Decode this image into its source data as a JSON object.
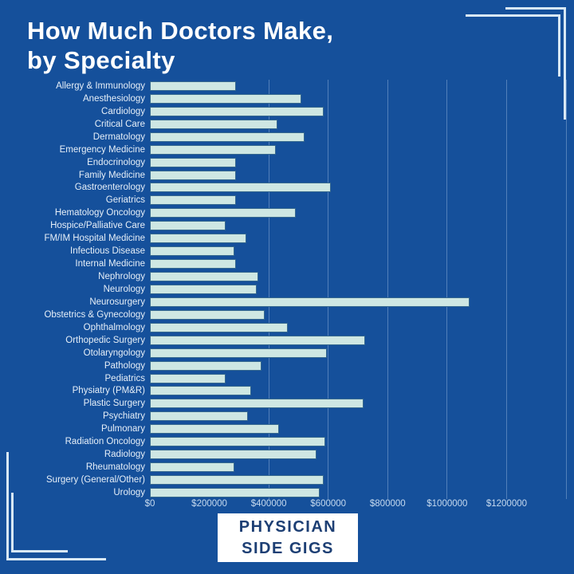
{
  "title": {
    "line1": "How Much Doctors Make,",
    "line2": "by Specialty"
  },
  "branding": {
    "line1": "PHYSICIAN",
    "line2": "SIDE GIGS"
  },
  "colors": {
    "background": "#15509B",
    "bar_fill": "#CEE7E3",
    "bar_border": "#36698F",
    "gridline": "rgba(205,228,248,0.33)",
    "category_text": "#E6EFF8",
    "tick_text": "#C6DAEF",
    "title_text": "#FFFFFF",
    "badge_background": "#FFFFFF",
    "badge_text": "#1D3F74",
    "corner_accent": "#D8E8F4"
  },
  "chart_data": {
    "type": "bar",
    "orientation": "horizontal",
    "title": "How Much Doctors Make, by Specialty",
    "xlabel": "",
    "ylabel": "",
    "xlim": [
      0,
      1400000
    ],
    "grid": true,
    "legend": false,
    "categories": [
      "Allergy & Immunology",
      "Anesthesiology",
      "Cardiology",
      "Critical Care",
      "Dermatology",
      "Emergency Medicine",
      "Endocrinology",
      "Family Medicine",
      "Gastroenterology",
      "Geriatrics",
      "Hematology Oncology",
      "Hospice/Palliative Care",
      "FM/IM Hospital Medicine",
      "Infectious Disease",
      "Internal Medicine",
      "Nephrology",
      "Neurology",
      "Neurosurgery",
      "Obstetrics & Gynecology",
      "Ophthalmology",
      "Orthopedic Surgery",
      "Otolaryngology",
      "Pathology",
      "Pediatrics",
      "Physiatry (PM&R)",
      "Plastic Surgery",
      "Psychiatry",
      "Pulmonary",
      "Radiation Oncology",
      "Radiology",
      "Rheumatology",
      "Surgery (General/Other)",
      "Urology"
    ],
    "values": [
      290000,
      510000,
      585000,
      430000,
      520000,
      425000,
      290000,
      290000,
      610000,
      290000,
      490000,
      255000,
      325000,
      285000,
      290000,
      365000,
      360000,
      1075000,
      385000,
      465000,
      725000,
      595000,
      375000,
      255000,
      340000,
      720000,
      330000,
      435000,
      590000,
      560000,
      285000,
      585000,
      570000
    ],
    "x_ticks": [
      {
        "label": "$0",
        "value": 0
      },
      {
        "label": "$200000",
        "value": 200000
      },
      {
        "label": "$400000",
        "value": 400000
      },
      {
        "label": "$600000",
        "value": 600000
      },
      {
        "label": "$800000",
        "value": 800000
      },
      {
        "label": "$1000000",
        "value": 1000000
      },
      {
        "label": "$1200000",
        "value": 1200000
      }
    ],
    "gridline_values": [
      400000,
      600000,
      800000,
      1000000,
      1200000,
      1400000
    ]
  }
}
